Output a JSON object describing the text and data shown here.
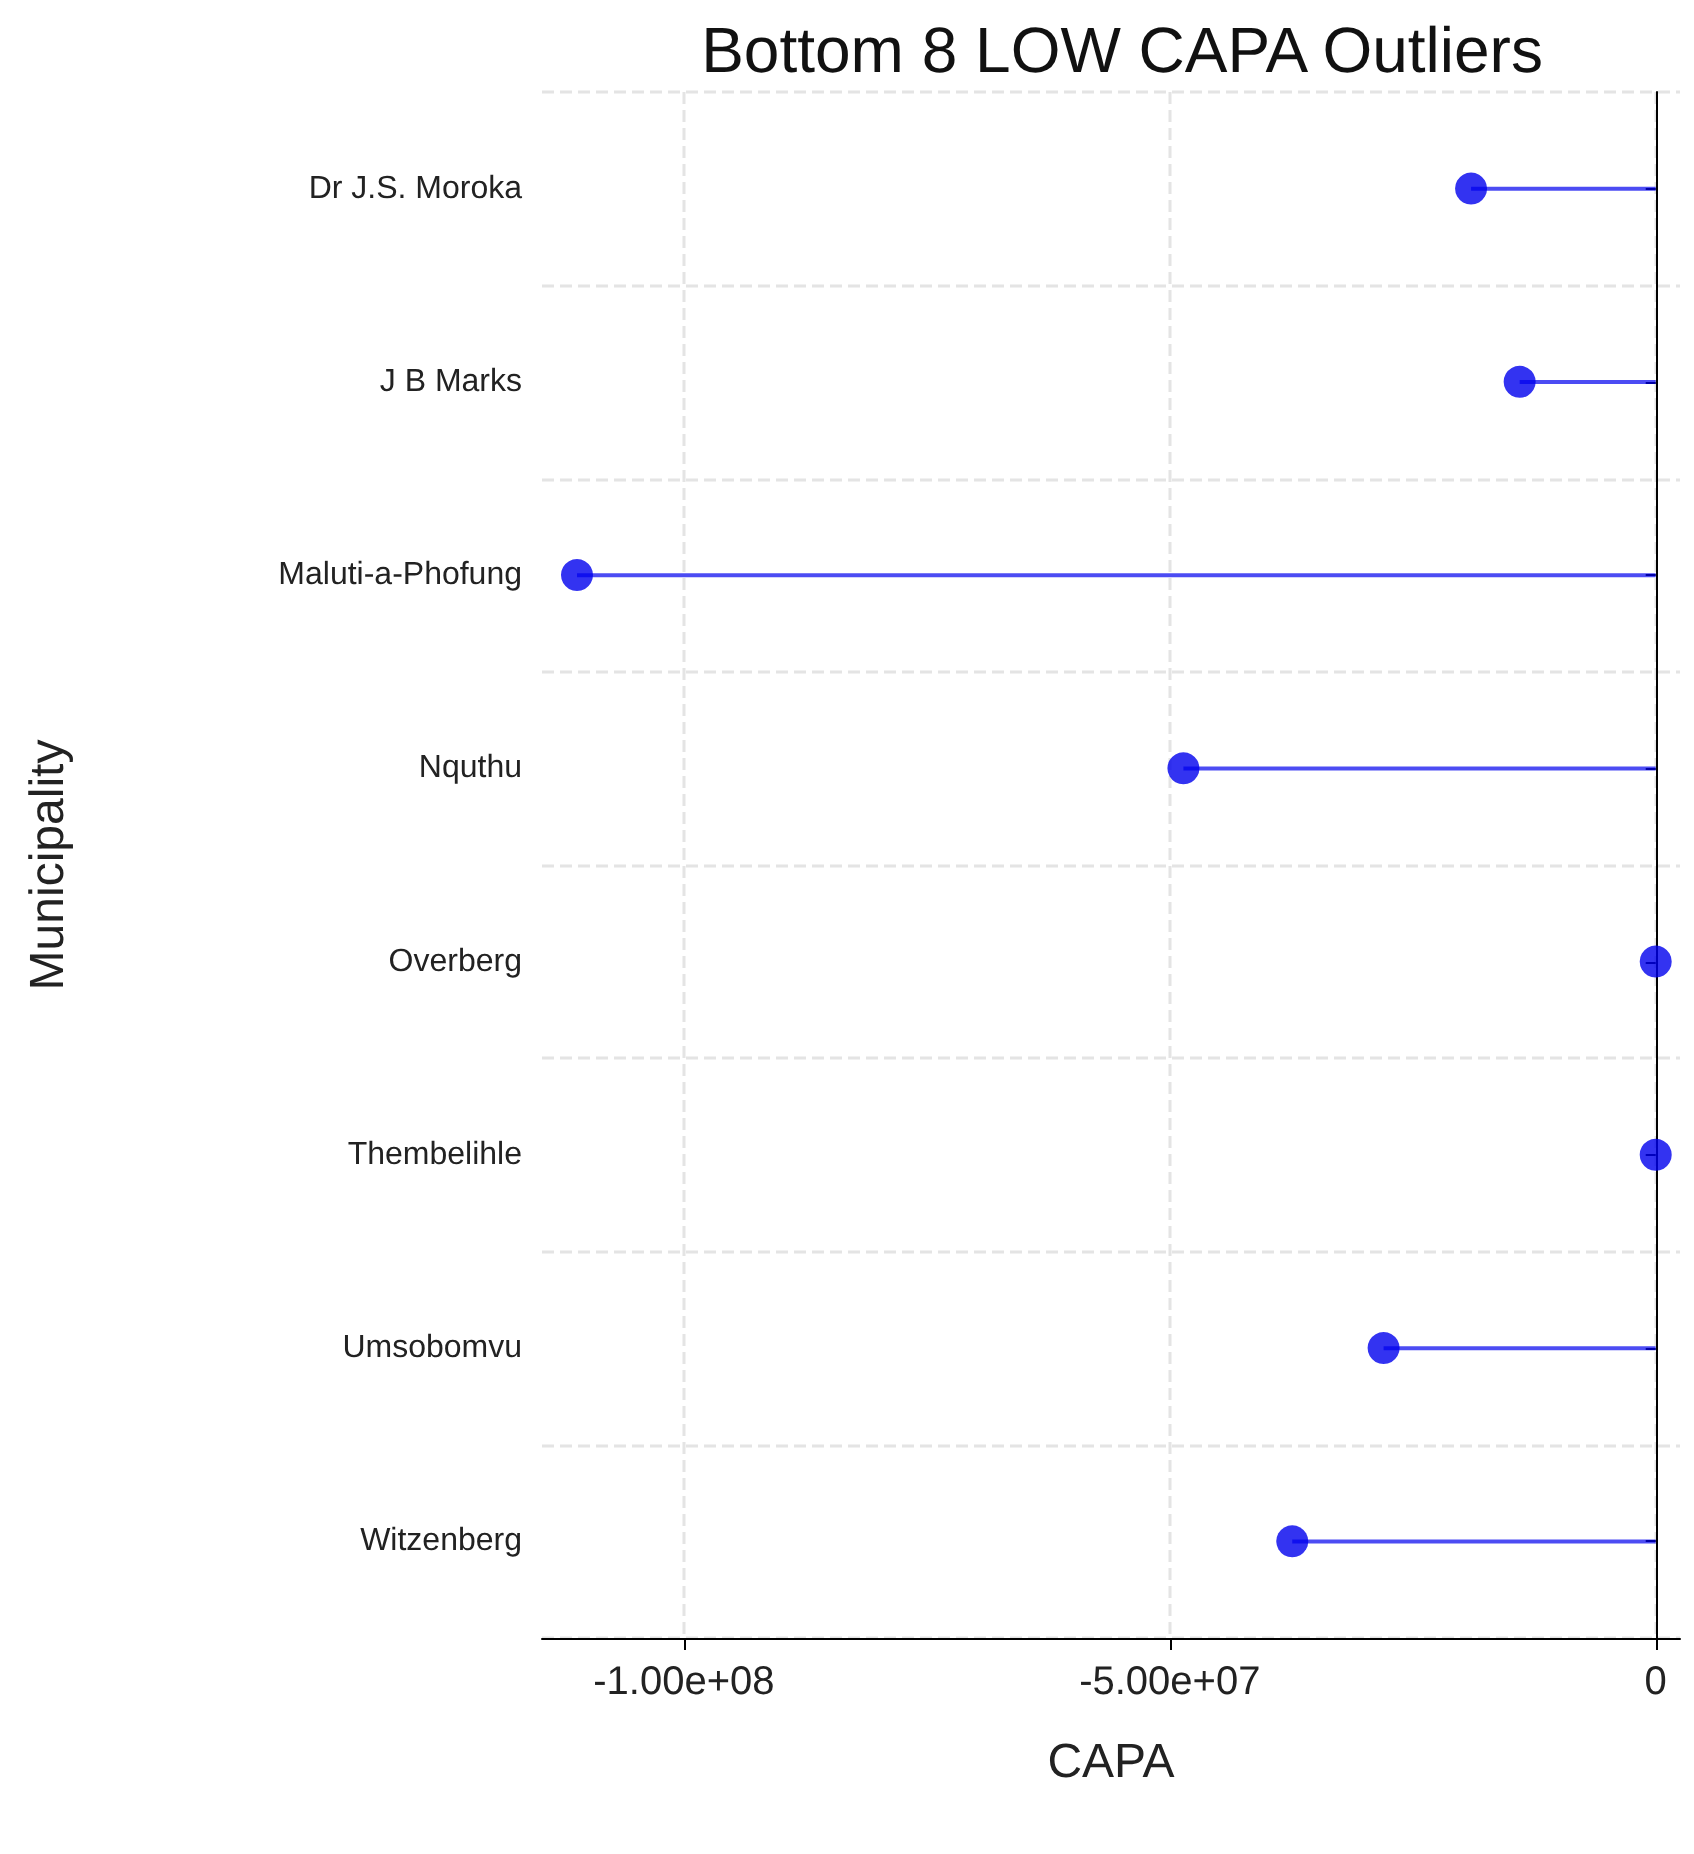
{
  "chart_data": {
    "type": "lollipop",
    "title": "Bottom 8 LOW CAPA Outliers",
    "xlabel": "CAPA",
    "ylabel": "Municipality",
    "orientation": "horizontal",
    "categories": [
      "Dr J.S. Moroka",
      "J B Marks",
      "Maluti-a-Phofung",
      "Nquthu",
      "Overberg",
      "Thembelihle",
      "Umsobomvu",
      "Witzenberg"
    ],
    "values": [
      -19000000,
      -14000000,
      -111000000,
      -48600000,
      0,
      0,
      -28000000,
      -37400000
    ],
    "color": "#0000ee",
    "marker": "circle",
    "grid": true,
    "xlim": [
      -114600000,
      2500000
    ],
    "xticks": [
      {
        "value": -100000000,
        "label": "-1.00e+08"
      },
      {
        "value": -50000000,
        "label": "-5.00e+07"
      },
      0
    ]
  }
}
